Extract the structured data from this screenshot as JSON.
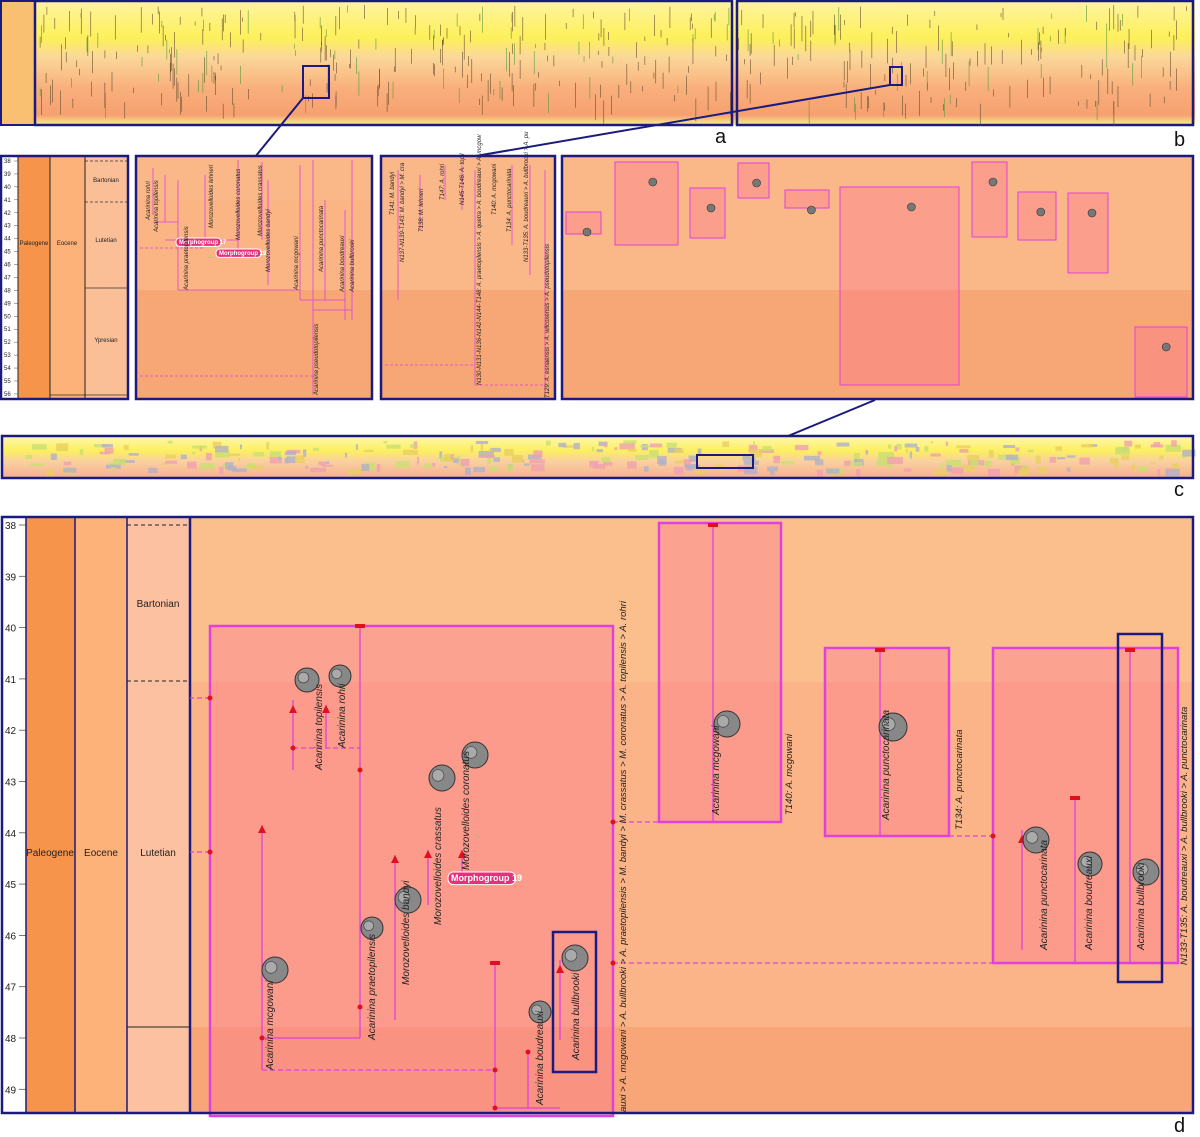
{
  "panel_labels": [
    "a",
    "b",
    "c",
    "d"
  ],
  "scale_small": {
    "ticks": [
      38,
      39,
      40,
      41,
      42,
      43,
      44,
      45,
      46,
      47,
      48,
      49,
      50,
      51,
      52,
      53,
      54,
      55,
      56
    ],
    "period": "Paleogene",
    "epoch": "Eocene",
    "stages": [
      "Bartonian",
      "Lutetian",
      "Ypresian"
    ]
  },
  "tree_small": {
    "labels": [
      "Acarinina rohri",
      "Acarinina topilensis",
      "Morphogroup 17",
      "Morozovelloides lehneri",
      "Morozovelloides coronatus",
      "Morphogroup 19",
      "Morozovelloides crassatus",
      "Morozovelloides bandyi",
      "Acarinina praetopilensis",
      "Acarinina mcgowani",
      "Acarinina punctocarinata",
      "Acarinina boudreauxi",
      "Acarinina bullbrooki",
      "Acarinina pseudotopilensis"
    ]
  },
  "nodes_small": {
    "labels": [
      "T141: M. bandyi",
      "N137-N139-T143: M. bandyi > M. cra",
      "T138: M. lehneri",
      "T147: A. rohri",
      "N145-T146: A. topil",
      "T140: A. mcgowani",
      "T134: A. punctocarinata",
      "N133-T135: A. boudreauxi > A. bullbrooki > A. pu",
      "N130-N131-N136-N142-N144-T148: A. praetopilensis > A. quetra > A. boudreauxi > A. mcgow",
      "T129: A. esnaensis > A. wilcoxensis > A. pseudotopilensis"
    ]
  },
  "detail": {
    "ticks": [
      38,
      39,
      40,
      41,
      42,
      43,
      44,
      45,
      46,
      47,
      48,
      49
    ],
    "period": "Paleogene",
    "epoch": "Eocene",
    "stages": [
      "Bartonian",
      "Lutetian"
    ],
    "taxa": [
      "Acarinina topilensis",
      "Acarinina rohri",
      "Morozovelloides crassatus",
      "Morozovelloides coronatus",
      "Morozovelloides bandyi",
      "Acarinina praetopilensis",
      "Acarinina mcgowani",
      "Acarinina boudreauxi",
      "Acarinina bullbrooki",
      "Acarinina mcgowani",
      "Acarinina punctocarinata",
      "Acarinina punctocarinata",
      "Acarinina boudreauxi",
      "Acarinina bullbrooki"
    ],
    "morphogroup": "Morphogroup 19",
    "groups": [
      "auxi > A. mcgowani > A. bullbrooki > A. praetopilensis > M. bandyi > M. crassatus > M. coronatus > A. topilensis > A. rohri",
      "T140: A. mcgowani",
      "T134: A. punctocarinata",
      "N133-T135: A. boudreauxi > A. bullbrooki > A. punctocarinata"
    ]
  }
}
